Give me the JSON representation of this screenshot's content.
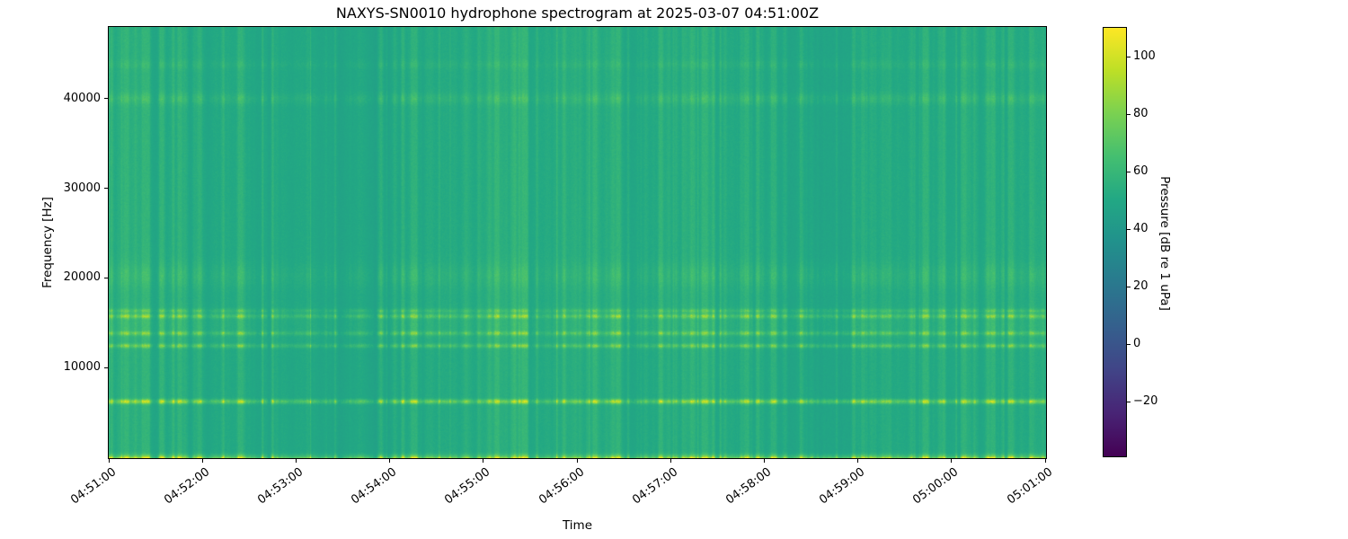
{
  "figure": {
    "title": "NAXYS-SN0010 hydrophone spectrogram at 2025-03-07 04:51:00Z",
    "background_color": "#ffffff"
  },
  "axes": {
    "xlabel": "Time",
    "ylabel": "Frequency [Hz]",
    "x_tick_labels": [
      "04:51:00",
      "04:52:00",
      "04:53:00",
      "04:54:00",
      "04:55:00",
      "04:56:00",
      "04:57:00",
      "04:58:00",
      "04:59:00",
      "05:00:00",
      "05:01:00"
    ],
    "y_tick_labels": [
      "10000",
      "20000",
      "30000",
      "40000"
    ],
    "y_tick_values": [
      10000,
      20000,
      30000,
      40000
    ]
  },
  "colorbar": {
    "label": "Pressure [dB re 1 uPa]",
    "tick_labels": [
      "100",
      "80",
      "60",
      "40",
      "20",
      "0",
      "−20"
    ],
    "tick_values": [
      100,
      80,
      60,
      40,
      20,
      0,
      -20
    ],
    "vmin": -39,
    "vmax": 110,
    "colormap": "viridis",
    "viridis_stops": [
      "#440154",
      "#482475",
      "#414487",
      "#355f8d",
      "#2a788e",
      "#21918c",
      "#22a884",
      "#44bf70",
      "#7ad151",
      "#bddf26",
      "#fde725"
    ]
  },
  "chart_data": {
    "type": "heatmap",
    "subtype": "spectrogram",
    "title": "NAXYS-SN0010 hydrophone spectrogram at 2025-03-07 04:51:00Z",
    "xlabel": "Time",
    "ylabel": "Frequency [Hz]",
    "x_ticks": [
      "04:51:00",
      "04:52:00",
      "04:53:00",
      "04:54:00",
      "04:55:00",
      "04:56:00",
      "04:57:00",
      "04:58:00",
      "04:59:00",
      "05:00:00",
      "05:01:00"
    ],
    "time_span_seconds": 600,
    "freq_range_hz": [
      0,
      48000
    ],
    "y_ticks_hz": [
      10000,
      20000,
      30000,
      40000
    ],
    "color_range_db": [
      -39,
      110
    ],
    "colormap": "viridis",
    "colorbar_label": "Pressure [dB re 1 uPa]",
    "colorbar_ticks_db": [
      100,
      80,
      60,
      40,
      20,
      0,
      -20
    ],
    "background_level_db": 48.3,
    "tonal_bands": [
      {
        "f0_hz": 0,
        "sigma_hz": 280,
        "amp_db": 9.0,
        "streak_gain": 0.9
      },
      {
        "f0_hz": 0,
        "sigma_hz": 90,
        "amp_db": 6.0,
        "streak_gain": 0.55
      },
      {
        "f0_hz": 6300,
        "sigma_hz": 180,
        "amp_db": 10.0,
        "streak_gain": 1.15
      },
      {
        "f0_hz": 12500,
        "sigma_hz": 160,
        "amp_db": 5.0,
        "streak_gain": 0.75
      },
      {
        "f0_hz": 13900,
        "sigma_hz": 160,
        "amp_db": 4.5,
        "streak_gain": 0.7
      },
      {
        "f0_hz": 14800,
        "sigma_hz": 1300,
        "amp_db": 1.5,
        "streak_gain": 0.18
      },
      {
        "f0_hz": 15800,
        "sigma_hz": 170,
        "amp_db": 5.0,
        "streak_gain": 0.8
      },
      {
        "f0_hz": 16400,
        "sigma_hz": 150,
        "amp_db": 3.0,
        "streak_gain": 0.5
      },
      {
        "f0_hz": 20300,
        "sigma_hz": 1000,
        "amp_db": 1.5,
        "streak_gain": 0.22
      },
      {
        "f0_hz": 40000,
        "sigma_hz": 450,
        "amp_db": 1.8,
        "streak_gain": 0.28
      },
      {
        "f0_hz": 43800,
        "sigma_hz": 350,
        "amp_db": 1.0,
        "streak_gain": 0.15
      }
    ],
    "broadband_transients": {
      "seed": 20250307,
      "strong_count": 270,
      "weak_count": 320,
      "dip_count": 60,
      "max_boost_db": 27
    }
  }
}
